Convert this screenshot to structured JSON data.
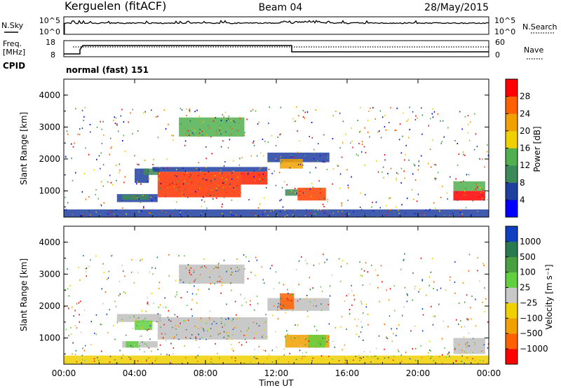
{
  "header": {
    "station": "Kerguelen (fitACF)",
    "beam": "Beam 04",
    "date": "28/May/2015"
  },
  "noise_panel": {
    "left_label": "N.Sky",
    "right_label": "N.Search",
    "left_ticks": [
      "10^5",
      "10^0"
    ],
    "right_ticks": [
      "10^5",
      "10^0"
    ]
  },
  "freq_panel": {
    "left_label_1": "Freq.",
    "left_label_2": "[MHz]",
    "right_label": "Nave",
    "left_ticks": [
      "18",
      "8"
    ],
    "right_ticks": [
      "60",
      "0"
    ]
  },
  "cpid": {
    "label": "CPID",
    "mode": "normal (fast) 151"
  },
  "chart_data": [
    {
      "type": "heatmap",
      "name": "power",
      "ylabel": "Slant Range [km]",
      "yticks": [
        "1000",
        "2000",
        "3000",
        "4000"
      ],
      "ylim": [
        180,
        4500
      ],
      "xlim_hours": [
        0,
        24
      ],
      "colorbar_label": "Power [dB]",
      "colorbar_ticks": [
        "4",
        "8",
        "12",
        "16",
        "20",
        "24",
        "28"
      ],
      "colorbar_colors": [
        "#0000ff",
        "#2040a0",
        "#3a8a5a",
        "#50b050",
        "#f0d000",
        "#f0a000",
        "#ff6000",
        "#ff0000"
      ],
      "regions": [
        {
          "t0": 4.0,
          "t1": 4.8,
          "r0": 1250,
          "r1": 1700,
          "color": "#2040a0"
        },
        {
          "t0": 4.5,
          "t1": 5.4,
          "r0": 1500,
          "r1": 1700,
          "color": "#3a8a5a"
        },
        {
          "t0": 3.0,
          "t1": 5.3,
          "r0": 650,
          "r1": 900,
          "color": "#2040a0"
        },
        {
          "t0": 3.3,
          "t1": 4.8,
          "r0": 720,
          "r1": 880,
          "color": "#3a8a5a"
        },
        {
          "t0": 5.3,
          "t1": 10.0,
          "r0": 800,
          "r1": 1600,
          "color": "#ff3000"
        },
        {
          "t0": 10.0,
          "t1": 11.5,
          "r0": 1200,
          "r1": 1600,
          "color": "#ff2000"
        },
        {
          "t0": 5.0,
          "t1": 11.5,
          "r0": 1600,
          "r1": 1750,
          "color": "#2040a0"
        },
        {
          "t0": 13.2,
          "t1": 14.8,
          "r0": 700,
          "r1": 1100,
          "color": "#ff4000"
        },
        {
          "t0": 12.5,
          "t1": 13.2,
          "r0": 850,
          "r1": 1050,
          "color": "#3a8a5a"
        },
        {
          "t0": 11.5,
          "t1": 15.0,
          "r0": 1900,
          "r1": 2200,
          "color": "#2040a0"
        },
        {
          "t0": 12.2,
          "t1": 13.5,
          "r0": 1700,
          "r1": 2000,
          "color": "#f0a000"
        },
        {
          "t0": 6.5,
          "t1": 10.2,
          "r0": 2700,
          "r1": 3300,
          "color": "#50b050"
        },
        {
          "t0": 22.0,
          "t1": 23.8,
          "r0": 700,
          "r1": 1000,
          "color": "#ff0000"
        },
        {
          "t0": 22.0,
          "t1": 23.8,
          "r0": 1000,
          "r1": 1300,
          "color": "#50b050"
        },
        {
          "t0": 0.0,
          "t1": 24.0,
          "r0": 180,
          "r1": 420,
          "color": "#2040a0"
        }
      ]
    },
    {
      "type": "heatmap",
      "name": "velocity",
      "ylabel": "Slant Range [km]",
      "yticks": [
        "1000",
        "2000",
        "3000",
        "4000"
      ],
      "ylim": [
        180,
        4500
      ],
      "xlim_hours": [
        0,
        24
      ],
      "xticks": [
        "00:00",
        "04:00",
        "08:00",
        "12:00",
        "16:00",
        "20:00",
        "00:00"
      ],
      "xlabel": "Time UT",
      "colorbar_label": "Velocity [m s⁻¹]",
      "colorbar_ticks": [
        "1000",
        "500",
        "100",
        "25",
        "−25",
        "−100",
        "−500",
        "−1000"
      ],
      "colorbar_colors": [
        "#1040c0",
        "#2a7a50",
        "#4aa040",
        "#60d040",
        "#c8c8c8",
        "#f0d000",
        "#f0a000",
        "#ff6000",
        "#ff0000"
      ],
      "regions": [
        {
          "t0": 3.0,
          "t1": 5.5,
          "r0": 1500,
          "r1": 1750,
          "color": "#c0c0c0"
        },
        {
          "t0": 4.0,
          "t1": 5.0,
          "r0": 1250,
          "r1": 1550,
          "color": "#60d040"
        },
        {
          "t0": 3.3,
          "t1": 5.3,
          "r0": 700,
          "r1": 900,
          "color": "#c0c0c0"
        },
        {
          "t0": 3.5,
          "t1": 4.2,
          "r0": 700,
          "r1": 900,
          "color": "#60d040"
        },
        {
          "t0": 5.3,
          "t1": 11.5,
          "r0": 950,
          "r1": 1650,
          "color": "#c0c0c0"
        },
        {
          "t0": 11.5,
          "t1": 15.0,
          "r0": 1850,
          "r1": 2250,
          "color": "#c0c0c0"
        },
        {
          "t0": 12.5,
          "t1": 15.0,
          "r0": 700,
          "r1": 1100,
          "color": "#f0a000"
        },
        {
          "t0": 13.8,
          "t1": 14.8,
          "r0": 700,
          "r1": 1100,
          "color": "#60d040"
        },
        {
          "t0": 12.2,
          "t1": 13.0,
          "r0": 1900,
          "r1": 2400,
          "color": "#ff6000"
        },
        {
          "t0": 6.5,
          "t1": 10.2,
          "r0": 2700,
          "r1": 3300,
          "color": "#c0c0c0"
        },
        {
          "t0": 22.0,
          "t1": 23.8,
          "r0": 500,
          "r1": 1000,
          "color": "#c0c0c0"
        },
        {
          "t0": 0.0,
          "t1": 24.0,
          "r0": 180,
          "r1": 450,
          "color": "#f0d000"
        }
      ]
    }
  ]
}
